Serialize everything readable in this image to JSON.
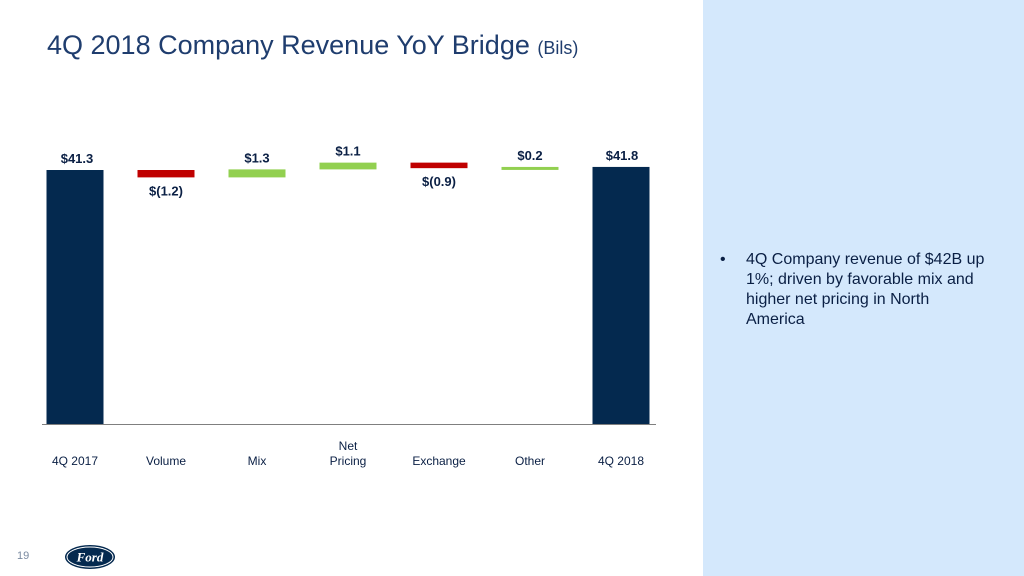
{
  "title": {
    "main": "4Q 2018 Company Revenue YoY Bridge",
    "unit": "(Bils)"
  },
  "bullets": [
    "4Q Company revenue of $42B up 1%; driven by favorable mix and higher net pricing in North America"
  ],
  "bullet_marker": "•",
  "page_number": "19",
  "logo_text": "Ford",
  "colors": {
    "total": "#04294f",
    "increase": "#92d050",
    "decrease": "#c00000",
    "panel": "#d4e8fc",
    "title": "#1f3d6e"
  },
  "chart_data": {
    "type": "bar",
    "subtype": "waterfall",
    "categories": [
      [
        "4Q 2017"
      ],
      [
        "Volume"
      ],
      [
        "Mix"
      ],
      [
        "Net",
        "Pricing"
      ],
      [
        "Exchange"
      ],
      [
        "Other"
      ],
      [
        "4Q 2018"
      ]
    ],
    "values": [
      41.3,
      -1.2,
      1.3,
      1.1,
      -0.9,
      0.2,
      41.8
    ],
    "kinds": [
      "total",
      "decrease",
      "increase",
      "increase",
      "decrease",
      "increase",
      "total"
    ],
    "labels": [
      "$41.3",
      "$(1.2)",
      "$1.3",
      "$1.1",
      "$(0.9)",
      "$0.2",
      "$41.8"
    ],
    "title": "4Q 2018 Company Revenue YoY Bridge (Bils)",
    "xlabel": "",
    "ylabel": ""
  }
}
